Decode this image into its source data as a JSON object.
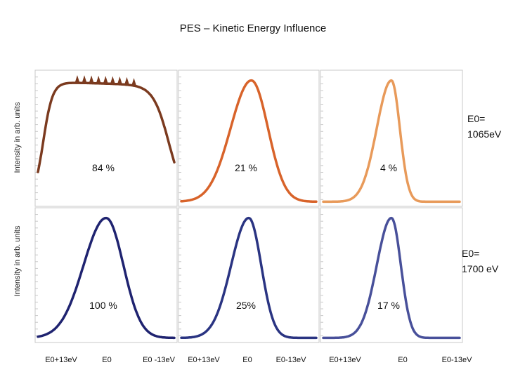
{
  "title": "PES – Kinetic Energy Influence",
  "chart_data": {
    "type": "line",
    "title": "PES – Kinetic Energy Influence",
    "ylabel": "Intensity in arb. units",
    "rows": [
      {
        "label_line1": "E0=",
        "label_line2": "1065eV"
      },
      {
        "label_line1": "E0=",
        "label_line2": "1700 eV"
      }
    ],
    "columns": [
      {
        "ticks": [
          "E0+13eV",
          "E0",
          "E0 -13eV"
        ]
      },
      {
        "ticks": [
          "E0+13eV",
          "E0",
          "E0-13eV"
        ]
      },
      {
        "ticks": [
          "E0+13eV",
          "E0",
          "E0-13eV"
        ]
      }
    ],
    "x_range": [
      13,
      -13
    ],
    "y_range": [
      0,
      1
    ],
    "panels": [
      {
        "row": 0,
        "col": 0,
        "annotation": "84 %",
        "color": "#7b3a1f",
        "shape": "plateau",
        "center": 0,
        "width": 12,
        "flat_top": true
      },
      {
        "row": 0,
        "col": 1,
        "annotation": "21 %",
        "color": "#d8632a",
        "shape": "peak",
        "center": -0.5,
        "sigma_left": 3.2,
        "sigma_right": 4.0
      },
      {
        "row": 0,
        "col": 2,
        "annotation": "4 %",
        "color": "#e89a5a",
        "shape": "peak",
        "center": 0,
        "sigma_left": 1.6,
        "sigma_right": 2.8
      },
      {
        "row": 1,
        "col": 0,
        "annotation": "100 %",
        "color": "#1f2370",
        "shape": "peak",
        "center": 0,
        "sigma_left": 3.3,
        "sigma_right": 4.3
      },
      {
        "row": 1,
        "col": 1,
        "annotation": "25%",
        "color": "#2a3482",
        "shape": "peak",
        "center": 0,
        "sigma_left": 2.4,
        "sigma_right": 3.4
      },
      {
        "row": 1,
        "col": 2,
        "annotation": "17 %",
        "color": "#48509a",
        "shape": "peak",
        "center": 0,
        "sigma_left": 1.8,
        "sigma_right": 2.8
      }
    ]
  }
}
